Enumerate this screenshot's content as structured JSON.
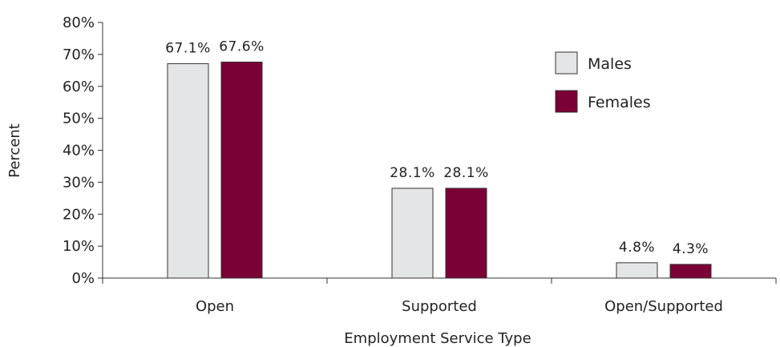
{
  "chart_data": {
    "type": "bar",
    "categories": [
      "Open",
      "Supported",
      "Open/Supported"
    ],
    "series": [
      {
        "name": "Males",
        "values": [
          67.1,
          28.1,
          4.8
        ],
        "labels": [
          "67.1%",
          "28.1%",
          "4.8%"
        ],
        "color": "#e4e5e6"
      },
      {
        "name": "Females",
        "values": [
          67.6,
          28.1,
          4.3
        ],
        "labels": [
          "67.6%",
          "28.1%",
          "4.3%"
        ],
        "color": "#7b0036"
      }
    ],
    "xlabel": "Employment Service Type",
    "ylabel": "Percent",
    "ylim": [
      0,
      80
    ],
    "yticks": [
      0,
      10,
      20,
      30,
      40,
      50,
      60,
      70,
      80
    ],
    "ytick_labels": [
      "0%",
      "10%",
      "20%",
      "30%",
      "40%",
      "50%",
      "60%",
      "70%",
      "80%"
    ],
    "grid": false,
    "legend_position": "top-right"
  }
}
